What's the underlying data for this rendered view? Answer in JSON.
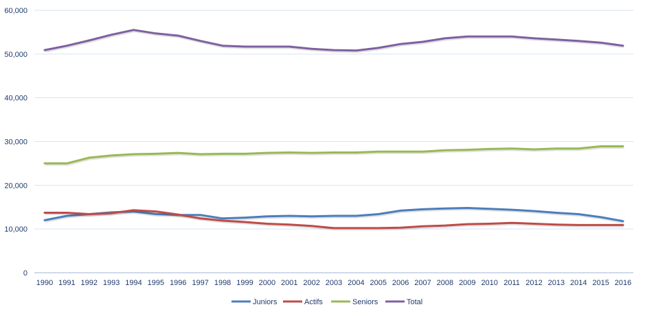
{
  "chart_data": {
    "type": "line",
    "title": "",
    "xlabel": "",
    "ylabel": "",
    "ylim": [
      0,
      60000
    ],
    "yticks": [
      "0",
      "10,000",
      "20,000",
      "30,000",
      "40,000",
      "50,000",
      "60,000"
    ],
    "ytick_values": [
      0,
      10000,
      20000,
      30000,
      40000,
      50000,
      60000
    ],
    "grid": true,
    "legend_position": "bottom",
    "categories": [
      "1990",
      "1991",
      "1992",
      "1993",
      "1994",
      "1995",
      "1996",
      "1997",
      "1998",
      "1999",
      "2000",
      "2001",
      "2002",
      "2003",
      "2004",
      "2005",
      "2006",
      "2007",
      "2008",
      "2009",
      "2010",
      "2011",
      "2012",
      "2013",
      "2014",
      "2015",
      "2016"
    ],
    "series": [
      {
        "name": "Juniors",
        "color": "#4a7ebb",
        "values": [
          12000,
          13000,
          13400,
          13800,
          14000,
          13400,
          13200,
          13200,
          12400,
          12600,
          12900,
          13000,
          12900,
          13000,
          13000,
          13400,
          14200,
          14500,
          14700,
          14800,
          14600,
          14400,
          14100,
          13700,
          13400,
          12700,
          11800
        ]
      },
      {
        "name": "Actifs",
        "color": "#be4b48",
        "values": [
          13700,
          13700,
          13400,
          13600,
          14300,
          14000,
          13300,
          12400,
          11900,
          11600,
          11200,
          11000,
          10700,
          10200,
          10200,
          10200,
          10300,
          10600,
          10800,
          11100,
          11200,
          11400,
          11200,
          11000,
          10900,
          10900,
          10900
        ]
      },
      {
        "name": "Seniors",
        "color": "#98b954",
        "values": [
          25000,
          25000,
          26300,
          26800,
          27100,
          27200,
          27400,
          27100,
          27200,
          27200,
          27400,
          27500,
          27400,
          27500,
          27500,
          27700,
          27700,
          27700,
          28000,
          28100,
          28300,
          28400,
          28200,
          28400,
          28400,
          28900,
          28900
        ]
      },
      {
        "name": "Total",
        "color": "#7d60a0",
        "values": [
          50900,
          51900,
          53100,
          54400,
          55500,
          54700,
          54200,
          53000,
          51900,
          51700,
          51700,
          51700,
          51200,
          50900,
          50800,
          51400,
          52300,
          52800,
          53600,
          54000,
          54000,
          54000,
          53600,
          53300,
          53000,
          52600,
          51900
        ]
      }
    ]
  }
}
